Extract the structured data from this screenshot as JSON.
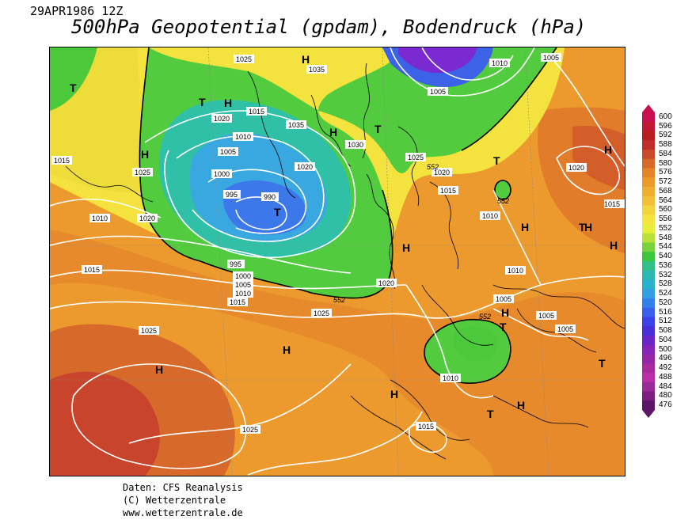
{
  "header": {
    "date": "29APR1986 12Z",
    "title": "500hPa Geopotential (gpdam), Bodendruck (hPa)"
  },
  "footer": {
    "line1": "Daten: CFS Reanalysis",
    "line2": "(C) Wetterzentrale",
    "line3": "www.wetterzentrale.de"
  },
  "colorbar": {
    "labels": [
      "600",
      "596",
      "592",
      "588",
      "584",
      "580",
      "576",
      "572",
      "568",
      "564",
      "560",
      "556",
      "552",
      "548",
      "544",
      "540",
      "536",
      "532",
      "528",
      "524",
      "520",
      "516",
      "512",
      "508",
      "504",
      "500",
      "496",
      "492",
      "488",
      "484",
      "480",
      "476"
    ],
    "colors": [
      "#c8104e",
      "#c01835",
      "#b82020",
      "#c02e2a",
      "#c84a2a",
      "#d86a28",
      "#e48428",
      "#ec9a2a",
      "#f0ae30",
      "#f2c038",
      "#f4d43c",
      "#f4e440",
      "#e8ec3a",
      "#b8e23a",
      "#78d23e",
      "#3cc63c",
      "#30c088",
      "#2cb8b0",
      "#28b0cc",
      "#30a0e0",
      "#3480ea",
      "#3a60ec",
      "#3c42e8",
      "#4a2ed8",
      "#6a24c8",
      "#8424b8",
      "#9626a8",
      "#a82aa0",
      "#ba2ea8",
      "#9a2a98",
      "#7a1e80",
      "#5c1466"
    ]
  },
  "map_labels": {
    "highs": [
      "H",
      "H",
      "H",
      "H",
      "H",
      "H",
      "H",
      "H",
      "H",
      "H",
      "H",
      "H",
      "H",
      "H"
    ],
    "lows": [
      "T",
      "T",
      "T",
      "T",
      "T",
      "T",
      "T",
      "T",
      "T"
    ],
    "isobars": [
      "1025",
      "1035",
      "1010",
      "1005",
      "1020",
      "1015",
      "1010",
      "1005",
      "1000",
      "995",
      "990",
      "1035",
      "1030",
      "1025",
      "1020",
      "1015",
      "1010",
      "1020",
      "1005",
      "1015",
      "1010",
      "1025",
      "1020",
      "1015",
      "1015",
      "1020",
      "1025",
      "1025",
      "995",
      "1000",
      "1005",
      "1010",
      "1015",
      "1025",
      "1005",
      "1005",
      "1005",
      "1010",
      "1015",
      "1020",
      "1010"
    ],
    "geopotential": [
      "552",
      "552",
      "552",
      "552"
    ]
  },
  "colors": {
    "hot": "#c9432c",
    "warm_orange": "#e8882e",
    "orange": "#f0a234",
    "yellow": "#f4e23c",
    "green": "#52cc3e",
    "teal": "#30c0a8",
    "cyan": "#3aa8e0",
    "blue": "#3c62e8",
    "purple": "#7a2ad0"
  }
}
